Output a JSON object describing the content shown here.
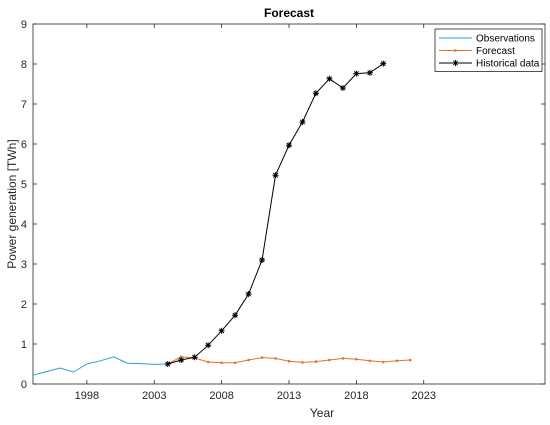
{
  "chart_data": {
    "type": "line",
    "title": "Forecast",
    "xlabel": "Year",
    "ylabel": "Power generation [TWh]",
    "xlim": [
      1994,
      2032
    ],
    "ylim": [
      0,
      9
    ],
    "x_ticks": [
      1998,
      2003,
      2008,
      2013,
      2018,
      2023
    ],
    "y_ticks": [
      0,
      1,
      2,
      3,
      4,
      5,
      6,
      7,
      8,
      9
    ],
    "grid": false,
    "legend_position": "top-right",
    "series": [
      {
        "name": "Observations",
        "color": "#2E9FD1",
        "marker": "none",
        "x": [
          1994,
          1995,
          1996,
          1997,
          1998,
          1999,
          2000,
          2001,
          2002,
          2003,
          2004
        ],
        "y": [
          0.22,
          0.31,
          0.4,
          0.3,
          0.5,
          0.58,
          0.68,
          0.52,
          0.51,
          0.49,
          0.5
        ]
      },
      {
        "name": "Forecast",
        "color": "#E8702A",
        "marker": "dot",
        "x": [
          2004,
          2005,
          2006,
          2007,
          2008,
          2009,
          2010,
          2011,
          2012,
          2013,
          2014,
          2015,
          2016,
          2017,
          2018,
          2019,
          2020,
          2021,
          2022
        ],
        "y": [
          0.5,
          0.68,
          0.65,
          0.55,
          0.53,
          0.53,
          0.6,
          0.66,
          0.64,
          0.57,
          0.54,
          0.56,
          0.6,
          0.64,
          0.62,
          0.58,
          0.55,
          0.58,
          0.6
        ]
      },
      {
        "name": "Historical data",
        "color": "#000000",
        "marker": "asterisk",
        "x": [
          2004,
          2005,
          2006,
          2007,
          2008,
          2009,
          2010,
          2011,
          2012,
          2013,
          2014,
          2015,
          2016,
          2017,
          2018,
          2019,
          2020
        ],
        "y": [
          0.5,
          0.6,
          0.67,
          0.97,
          1.33,
          1.72,
          2.25,
          3.1,
          5.22,
          5.97,
          6.55,
          7.27,
          7.63,
          7.4,
          7.76,
          7.78,
          8.01
        ]
      }
    ]
  }
}
